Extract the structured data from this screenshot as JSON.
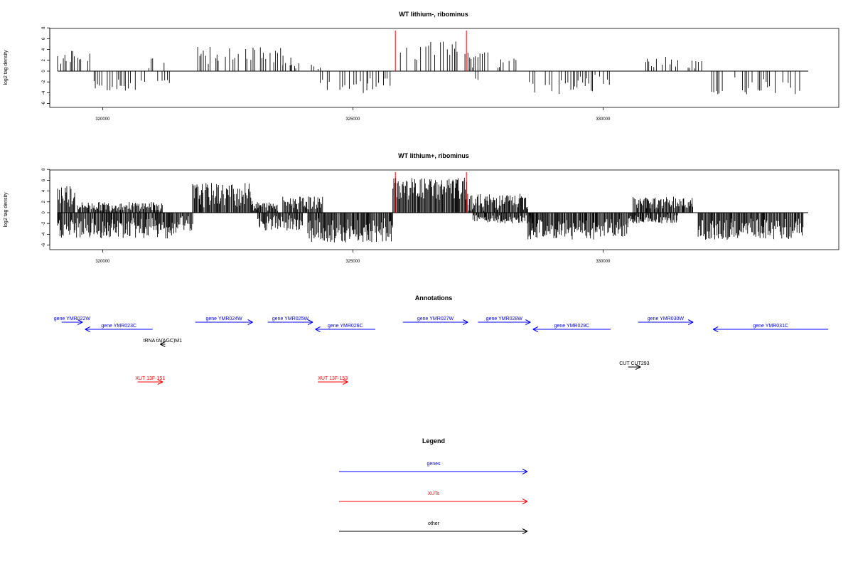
{
  "colors": {
    "genes": "#0000ff",
    "xuts": "#ff0000",
    "other": "#000000",
    "marker": "#ff0000",
    "bars": "#000000"
  },
  "chart_data": [
    {
      "type": "bar",
      "title": "WT lithium-, ribominus",
      "ylabel": "log2 tag density",
      "xlim": [
        319100,
        334100
      ],
      "ylim": [
        -6,
        8
      ],
      "xticks": [
        320000,
        325000,
        330000
      ],
      "yticks": [
        8,
        6,
        4,
        2,
        0,
        -2,
        -4,
        -6
      ],
      "markers": [
        325850,
        327270
      ],
      "density": "sparse",
      "regions": [
        {
          "x": [
            319100,
            319750
          ],
          "y": [
            1,
            3.8
          ]
        },
        {
          "x": [
            319800,
            320900
          ],
          "y": [
            -1.5,
            -3.8
          ]
        },
        {
          "x": [
            320850,
            321000
          ],
          "y": [
            0.5,
            2.8
          ]
        },
        {
          "x": [
            321000,
            321250
          ],
          "y": [
            0.3,
            3.0
          ]
        },
        {
          "x": [
            321100,
            321350
          ],
          "y": [
            -0.8,
            -2.5
          ]
        },
        {
          "x": [
            321900,
            323800
          ],
          "y": [
            1,
            4.5
          ]
        },
        {
          "x": [
            323600,
            323950
          ],
          "y": [
            0.3,
            1.5
          ]
        },
        {
          "x": [
            324150,
            324400
          ],
          "y": [
            0.3,
            1.2
          ]
        },
        {
          "x": [
            324350,
            325300
          ],
          "y": [
            -1.5,
            -4.8
          ]
        },
        {
          "x": [
            325300,
            325750
          ],
          "y": [
            -1,
            -3.5
          ]
        },
        {
          "x": [
            325850,
            327250
          ],
          "y": [
            1.5,
            5.5
          ]
        },
        {
          "x": [
            327450,
            327550
          ],
          "y": [
            -1,
            -2.5
          ]
        },
        {
          "x": [
            327300,
            327800
          ],
          "y": [
            0.3,
            3.5
          ]
        },
        {
          "x": [
            327900,
            328300
          ],
          "y": [
            0.3,
            2.5
          ]
        },
        {
          "x": [
            328500,
            329500
          ],
          "y": [
            -0.8,
            -4.3
          ]
        },
        {
          "x": [
            329500,
            330200
          ],
          "y": [
            -0.5,
            -3.8
          ]
        },
        {
          "x": [
            330800,
            331500
          ],
          "y": [
            0.5,
            2.8
          ]
        },
        {
          "x": [
            331700,
            332000
          ],
          "y": [
            0.3,
            2
          ]
        },
        {
          "x": [
            332050,
            334000
          ],
          "y": [
            -1,
            -4.3
          ]
        }
      ]
    },
    {
      "type": "bar",
      "title": "WT lithium+, ribominus",
      "ylabel": "log2 tag density",
      "xlim": [
        319100,
        334100
      ],
      "ylim": [
        -6,
        8
      ],
      "xticks": [
        320000,
        325000,
        330000
      ],
      "yticks": [
        8,
        6,
        4,
        2,
        0,
        -2,
        -4,
        -6
      ],
      "markers": [
        325850,
        327270
      ],
      "density": "dense",
      "regions": [
        {
          "x": [
            319100,
            319450
          ],
          "y": [
            1,
            5.5
          ]
        },
        {
          "x": [
            319100,
            321500
          ],
          "y": [
            -1,
            -4.8
          ]
        },
        {
          "x": [
            319500,
            321200
          ],
          "y": [
            0.3,
            2
          ]
        },
        {
          "x": [
            321500,
            321800
          ],
          "y": [
            -0.5,
            -3.5
          ]
        },
        {
          "x": [
            321800,
            323000
          ],
          "y": [
            1,
            5.5
          ]
        },
        {
          "x": [
            323000,
            323500
          ],
          "y": [
            0.3,
            2
          ]
        },
        {
          "x": [
            323100,
            324000
          ],
          "y": [
            -0.5,
            -3.5
          ]
        },
        {
          "x": [
            323600,
            324400
          ],
          "y": [
            0.5,
            3
          ]
        },
        {
          "x": [
            324100,
            325800
          ],
          "y": [
            -1,
            -5.5
          ]
        },
        {
          "x": [
            325800,
            327300
          ],
          "y": [
            2,
            6.5
          ]
        },
        {
          "x": [
            327300,
            328500
          ],
          "y": [
            0.3,
            3.5
          ]
        },
        {
          "x": [
            327400,
            328600
          ],
          "y": [
            -0.3,
            -2
          ]
        },
        {
          "x": [
            328500,
            330500
          ],
          "y": [
            -1,
            -5
          ]
        },
        {
          "x": [
            330600,
            331800
          ],
          "y": [
            0.5,
            3
          ]
        },
        {
          "x": [
            330500,
            331500
          ],
          "y": [
            -0.3,
            -2
          ]
        },
        {
          "x": [
            331900,
            334000
          ],
          "y": [
            -1,
            -5
          ]
        }
      ]
    }
  ],
  "annotations": {
    "title": "Annotations",
    "features": [
      {
        "label": "gene YMR022W",
        "type": "gene",
        "from": 319180,
        "to": 319600
      },
      {
        "label": "gene YMR023C",
        "type": "gene",
        "from": 321000,
        "to": 319650
      },
      {
        "label": "tRNA tA(AGC)M1",
        "type": "other",
        "from": 321250,
        "to": 321150
      },
      {
        "label": "XUT 13F-151",
        "type": "xut",
        "from": 320700,
        "to": 321200
      },
      {
        "label": "gene YMR024W",
        "type": "gene",
        "from": 321850,
        "to": 323000
      },
      {
        "label": "gene YMR025W",
        "type": "gene",
        "from": 323300,
        "to": 324200
      },
      {
        "label": "gene YMR026C",
        "type": "gene",
        "from": 325450,
        "to": 324250
      },
      {
        "label": "XUT 13F-153",
        "type": "xut",
        "from": 324300,
        "to": 324900
      },
      {
        "label": "gene YMR027W",
        "type": "gene",
        "from": 326000,
        "to": 327300
      },
      {
        "label": "gene YMR028W",
        "type": "gene",
        "from": 327500,
        "to": 328550
      },
      {
        "label": "gene YMR029C",
        "type": "gene",
        "from": 330150,
        "to": 328600
      },
      {
        "label": "CUT CUT293",
        "type": "other",
        "from": 330500,
        "to": 330750
      },
      {
        "label": "gene YMR030W",
        "type": "gene",
        "from": 330700,
        "to": 331800
      },
      {
        "label": "gene YMR031C",
        "type": "gene",
        "from": 334500,
        "to": 332200
      }
    ]
  },
  "legend": {
    "title": "Legend",
    "items": [
      {
        "label": "genes",
        "type": "gene"
      },
      {
        "label": "XUTs",
        "type": "xut"
      },
      {
        "label": "other",
        "type": "other"
      }
    ]
  }
}
